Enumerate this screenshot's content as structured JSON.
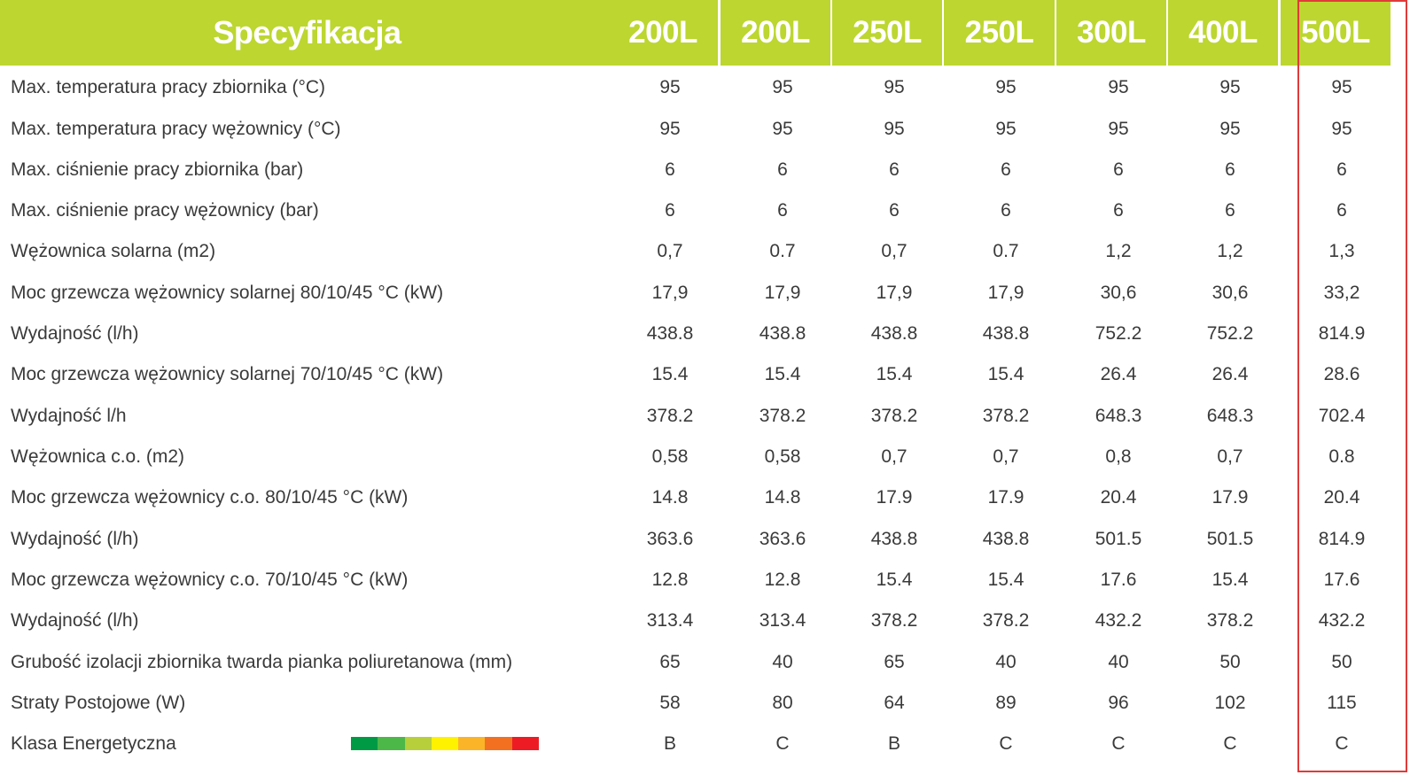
{
  "header": {
    "spec_label": "Specyfikacja",
    "columns": [
      "200L",
      "200L",
      "250L",
      "250L",
      "300L",
      "400L",
      "500L"
    ]
  },
  "rows": [
    {
      "label": "Max. temperatura pracy zbiornika (°C)",
      "values": [
        "95",
        "95",
        "95",
        "95",
        "95",
        "95",
        "95"
      ]
    },
    {
      "label": "Max. temperatura pracy wężownicy (°C)",
      "values": [
        "95",
        "95",
        "95",
        "95",
        "95",
        "95",
        "95"
      ]
    },
    {
      "label": "Max. ciśnienie pracy zbiornika (bar)",
      "values": [
        "6",
        "6",
        "6",
        "6",
        "6",
        "6",
        "6"
      ]
    },
    {
      "label": "Max. ciśnienie pracy wężownicy (bar)",
      "values": [
        "6",
        "6",
        "6",
        "6",
        "6",
        "6",
        "6"
      ]
    },
    {
      "label": "Wężownica solarna (m2)",
      "values": [
        "0,7",
        "0.7",
        "0,7",
        "0.7",
        "1,2",
        "1,2",
        "1,3"
      ]
    },
    {
      "label": "Moc grzewcza wężownicy solarnej 80/10/45 °C (kW)",
      "values": [
        "17,9",
        "17,9",
        "17,9",
        "17,9",
        "30,6",
        "30,6",
        "33,2"
      ]
    },
    {
      "label": "Wydajność (l/h)",
      "values": [
        "438.8",
        "438.8",
        "438.8",
        "438.8",
        "752.2",
        "752.2",
        "814.9"
      ]
    },
    {
      "label": "Moc grzewcza wężownicy solarnej 70/10/45 °C (kW)",
      "values": [
        "15.4",
        "15.4",
        "15.4",
        "15.4",
        "26.4",
        "26.4",
        "28.6"
      ]
    },
    {
      "label": "Wydajność l/h",
      "values": [
        "378.2",
        "378.2",
        "378.2",
        "378.2",
        "648.3",
        "648.3",
        "702.4"
      ]
    },
    {
      "label": "Wężownica c.o. (m2)",
      "values": [
        "0,58",
        "0,58",
        "0,7",
        "0,7",
        "0,8",
        "0,7",
        "0.8"
      ]
    },
    {
      "label": "Moc grzewcza wężownicy c.o. 80/10/45 °C (kW)",
      "values": [
        "14.8",
        "14.8",
        "17.9",
        "17.9",
        "20.4",
        "17.9",
        "20.4"
      ]
    },
    {
      "label": "Wydajność (l/h)",
      "values": [
        "363.6",
        "363.6",
        "438.8",
        "438.8",
        "501.5",
        "501.5",
        "814.9"
      ]
    },
    {
      "label": "Moc grzewcza wężownicy c.o. 70/10/45 °C (kW)",
      "values": [
        "12.8",
        "12.8",
        "15.4",
        "15.4",
        "17.6",
        "15.4",
        "17.6"
      ]
    },
    {
      "label": "Wydajność (l/h)",
      "values": [
        "313.4",
        "313.4",
        "378.2",
        "378.2",
        "432.2",
        "378.2",
        "432.2"
      ]
    },
    {
      "label": "Grubość izolacji zbiornika twarda pianka poliuretanowa (mm)",
      "values": [
        "65",
        "40",
        "65",
        "40",
        "40",
        "50",
        "50"
      ]
    },
    {
      "label": "Straty Postojowe (W)",
      "values": [
        "58",
        "80",
        "64",
        "89",
        "96",
        "102",
        "115"
      ]
    },
    {
      "label": "Klasa Energetyczna",
      "values": [
        "B",
        "C",
        "B",
        "C",
        "C",
        "C",
        "C"
      ]
    }
  ],
  "energy_scale_colors": [
    "#009a44",
    "#4cb848",
    "#b7cf3a",
    "#fff200",
    "#fbb428",
    "#f37021",
    "#ed1c24"
  ],
  "colors": {
    "header_bg": "#bdd630",
    "highlight_border": "#e03a3a"
  }
}
